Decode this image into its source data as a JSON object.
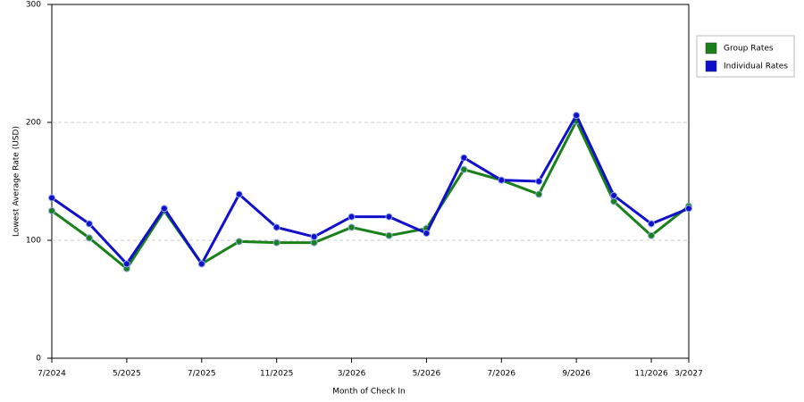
{
  "chart_data": {
    "type": "line",
    "x_label": "Month of Check In",
    "y_label": "Lowest Average Rate (USD)",
    "categories": [
      "7/2024",
      null,
      "5/2025",
      null,
      "7/2025",
      null,
      "11/2025",
      null,
      "3/2026",
      null,
      "5/2026",
      null,
      "7/2026",
      null,
      "9/2026",
      null,
      "11/2026",
      "3/2027"
    ],
    "series": [
      {
        "name": "Group Rates",
        "color": "#1a801a",
        "values": [
          125,
          102,
          76,
          125,
          80,
          99,
          98,
          98,
          111,
          104,
          110,
          160,
          151,
          139,
          201,
          133,
          104,
          129
        ]
      },
      {
        "name": "Individual Rates",
        "color": "#1010cc",
        "values": [
          136,
          114,
          80,
          127,
          80,
          139,
          111,
          103,
          120,
          120,
          106,
          170,
          151,
          150,
          206,
          138,
          114,
          127
        ]
      }
    ],
    "ylim": [
      0,
      300
    ],
    "yticks": [
      0,
      100,
      200,
      300
    ],
    "grid": true,
    "legend": "right"
  }
}
